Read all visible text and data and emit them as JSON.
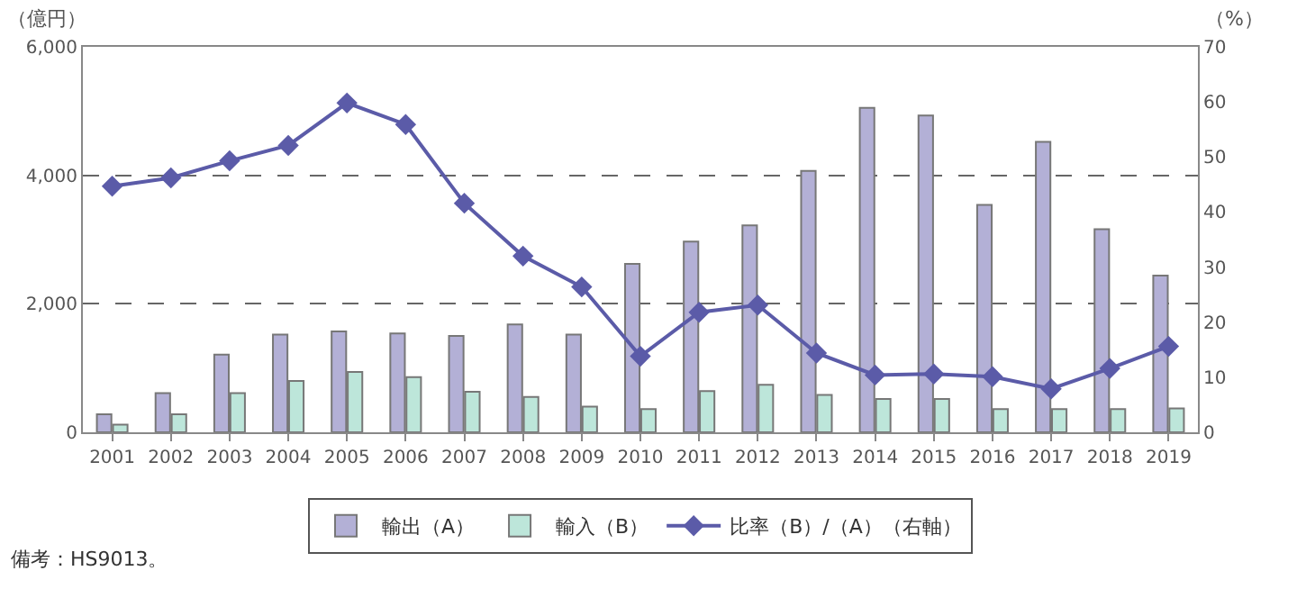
{
  "chart_data": {
    "type": "bar",
    "ylabel": "（億円）",
    "y2label": "（%）",
    "categories": [
      "2001",
      "2002",
      "2003",
      "2004",
      "2005",
      "2006",
      "2007",
      "2008",
      "2009",
      "2010",
      "2011",
      "2012",
      "2013",
      "2014",
      "2015",
      "2016",
      "2017",
      "2018",
      "2019"
    ],
    "series": [
      {
        "name": "輸出（A）",
        "color": "#b3b0d6",
        "values": [
          280,
          610,
          1210,
          1520,
          1570,
          1540,
          1500,
          1680,
          1520,
          2620,
          2970,
          3220,
          4070,
          5050,
          4930,
          3540,
          4520,
          3160,
          2440
        ]
      },
      {
        "name": "輸入（B）",
        "color": "#bde6da",
        "values": [
          120,
          280,
          610,
          800,
          940,
          860,
          630,
          550,
          400,
          360,
          640,
          740,
          580,
          520,
          520,
          360,
          360,
          360,
          370
        ]
      },
      {
        "name": "比率（B）/（A）（右軸）",
        "type": "line",
        "axis": "y2",
        "color": "#5b5ba8",
        "marker": "diamond",
        "values": [
          44.7,
          46.2,
          49.3,
          52.1,
          59.8,
          55.9,
          41.6,
          32.0,
          26.4,
          13.8,
          21.8,
          23.1,
          14.4,
          10.4,
          10.6,
          10.1,
          7.9,
          11.6,
          15.6
        ]
      }
    ],
    "ylim": [
      0,
      6000
    ],
    "yticks": [
      {
        "value": 0,
        "label": "0"
      },
      {
        "value": 2000,
        "label": "2,000"
      },
      {
        "value": 4000,
        "label": "4,000"
      },
      {
        "value": 6000,
        "label": "6,000"
      }
    ],
    "y2lim": [
      0,
      70
    ],
    "y2ticks": [
      0,
      10,
      20,
      30,
      40,
      50,
      60,
      70
    ],
    "grid": "y",
    "legend": "bottom",
    "annotations": [
      "備考：HS9013。"
    ]
  }
}
